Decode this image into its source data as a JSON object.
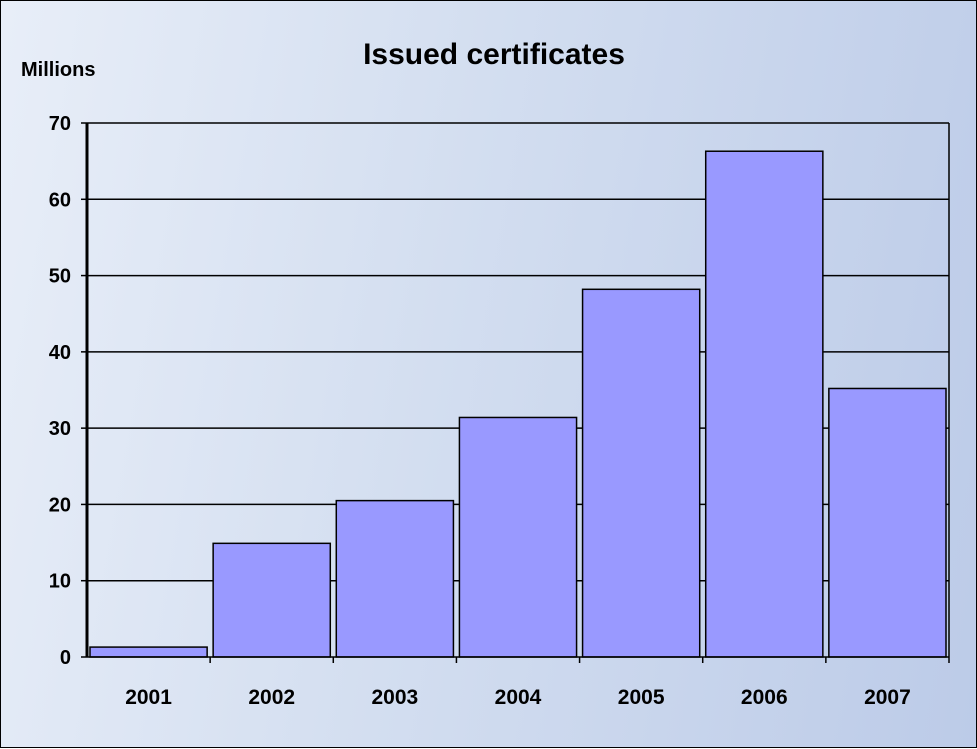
{
  "chart_data": {
    "type": "bar",
    "title": "Issued certificates",
    "ylabel": "Millions",
    "xlabel": "",
    "categories": [
      "2001",
      "2002",
      "2003",
      "2004",
      "2005",
      "2006",
      "2007"
    ],
    "values": [
      1.3,
      14.9,
      20.5,
      31.4,
      48.2,
      66.3,
      35.2
    ],
    "ylim": [
      0,
      70
    ],
    "yticks": [
      0,
      10,
      20,
      30,
      40,
      50,
      60,
      70
    ],
    "grid": true,
    "legend": "none",
    "colors": {
      "bar_fill": "#9999ff",
      "bar_stroke": "#000000",
      "gridline": "#000000"
    }
  }
}
